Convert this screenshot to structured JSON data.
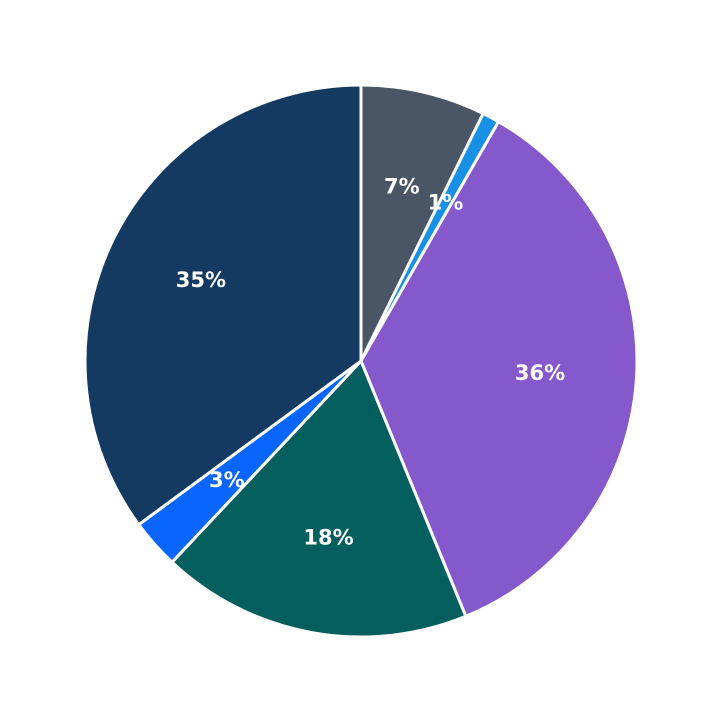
{
  "chart_data": {
    "type": "pie",
    "title": "",
    "start_angle": "90 (top), clockwise",
    "slices": [
      {
        "label": "7%",
        "value": 7.3,
        "color": "#4a5565"
      },
      {
        "label": "1%",
        "value": 1.0,
        "color": "#1790e6"
      },
      {
        "label": "36%",
        "value": 35.5,
        "color": "#8558cc"
      },
      {
        "label": "18%",
        "value": 18.2,
        "color": "#025f5e"
      },
      {
        "label": "3%",
        "value": 2.9,
        "color": "#0866ff"
      },
      {
        "label": "35%",
        "value": 35.1,
        "color": "#143a62"
      }
    ],
    "legend": "none"
  }
}
